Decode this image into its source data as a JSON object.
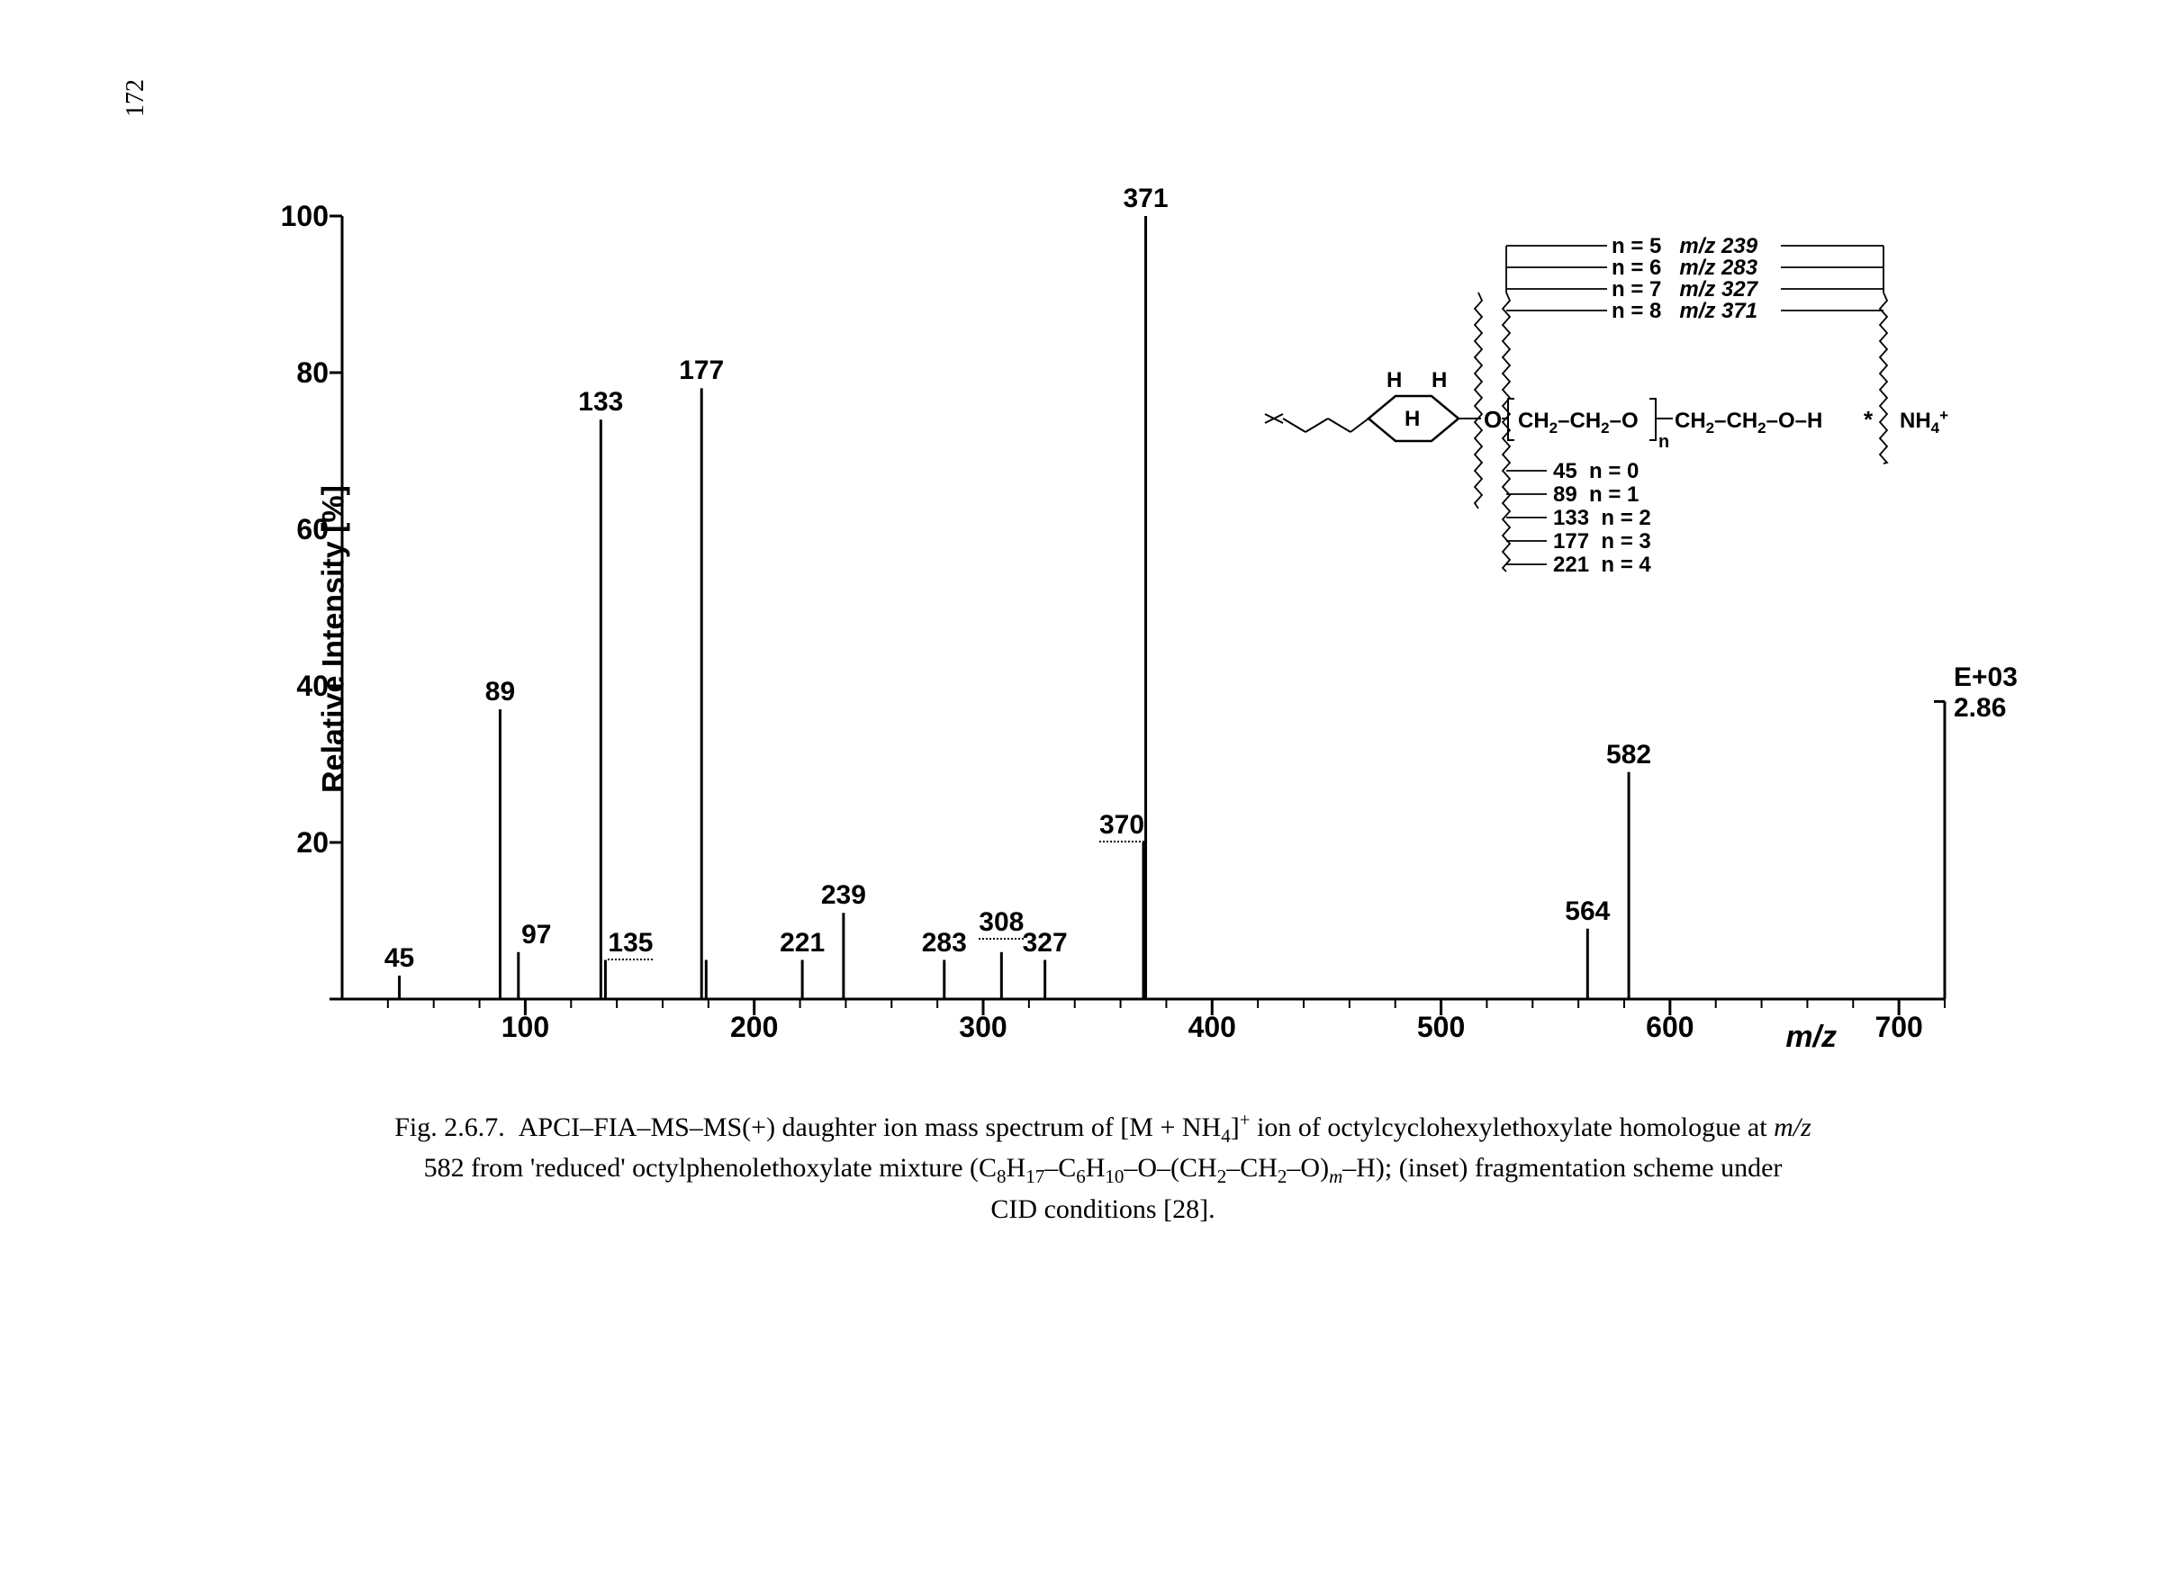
{
  "page_number": "172",
  "chart": {
    "type": "mass_spectrum",
    "y_label": "Relative Intensity [%]",
    "x_label": "m/z",
    "background_color": "#ffffff",
    "axis_color": "#000000",
    "tick_color": "#000000",
    "peak_color": "#000000",
    "label_fontsize": 34,
    "tick_fontsize": 32,
    "peak_label_fontsize": 30,
    "xlim": [
      20,
      720
    ],
    "ylim": [
      0,
      100
    ],
    "y_ticks": [
      0,
      20,
      40,
      60,
      80,
      100
    ],
    "x_ticks": [
      100,
      200,
      300,
      400,
      500,
      600,
      700
    ],
    "x_minor_tick_step": 20,
    "peak_width": 3,
    "peaks": [
      {
        "mz": 45,
        "intensity": 3,
        "label": "45"
      },
      {
        "mz": 89,
        "intensity": 37,
        "label": "89"
      },
      {
        "mz": 97,
        "intensity": 6,
        "label": "97"
      },
      {
        "mz": 133,
        "intensity": 74,
        "label": "133"
      },
      {
        "mz": 135,
        "intensity": 5,
        "label": "135",
        "underlined": true
      },
      {
        "mz": 177,
        "intensity": 78,
        "label": "177"
      },
      {
        "mz": 179,
        "intensity": 5
      },
      {
        "mz": 221,
        "intensity": 5,
        "label": "221"
      },
      {
        "mz": 239,
        "intensity": 11,
        "label": "239"
      },
      {
        "mz": 283,
        "intensity": 5,
        "label": "283"
      },
      {
        "mz": 308,
        "intensity": 6,
        "label": "308",
        "underlined": true
      },
      {
        "mz": 327,
        "intensity": 5,
        "label": "327"
      },
      {
        "mz": 370,
        "intensity": 20,
        "label": "370",
        "underlined": true
      },
      {
        "mz": 371,
        "intensity": 100,
        "label": "371"
      },
      {
        "mz": 564,
        "intensity": 9,
        "label": "564"
      },
      {
        "mz": 582,
        "intensity": 29,
        "label": "582"
      }
    ],
    "intensity_annotation": {
      "line1": "E+03",
      "line2": "2.86"
    }
  },
  "inset": {
    "top_annotations": [
      {
        "n": "n = 5",
        "mz": "m/z 239"
      },
      {
        "n": "n = 6",
        "mz": "m/z 283"
      },
      {
        "n": "n = 7",
        "mz": "m/z 327"
      },
      {
        "n": "n = 8",
        "mz": "m/z 371"
      }
    ],
    "bottom_annotations": [
      {
        "val": "45",
        "n": "n = 0"
      },
      {
        "val": "89",
        "n": "n = 1"
      },
      {
        "val": "133",
        "n": "n = 2"
      },
      {
        "val": "177",
        "n": "n = 3"
      },
      {
        "val": "221",
        "n": "n = 4"
      }
    ],
    "structure_labels": {
      "H_top_left": "H",
      "H_top_right": "H",
      "H_center": "H",
      "O_left": "O",
      "repeat": "CH₂–CH₂–O",
      "n_sub": "n",
      "tail": "CH₂–CH₂–O–H",
      "nh4": "NH₄⁺",
      "asterisk": "*"
    },
    "bracket_color": "#000000",
    "line_color": "#000000",
    "text_color": "#000000",
    "fontsize": 24
  },
  "caption_parts": {
    "fig_label": "Fig. 2.6.7.",
    "line1_a": "APCI–FIA–MS–MS(+) daughter ion mass spectrum of [M + NH",
    "line1_b": "]",
    "line1_c": " ion of octylcyclohexylethoxylate homologue at ",
    "mz": "m/z",
    "line2_a": "582 from 'reduced' octylphenolethoxylate mixture (C",
    "line2_b": "H",
    "line2_c": "–C",
    "line2_d": "H",
    "line2_e": "–O–(CH",
    "line2_f": "–CH",
    "line2_g": "–O)",
    "line2_h": "–H); (inset) fragmentation scheme under",
    "line3": "CID conditions [28]."
  }
}
